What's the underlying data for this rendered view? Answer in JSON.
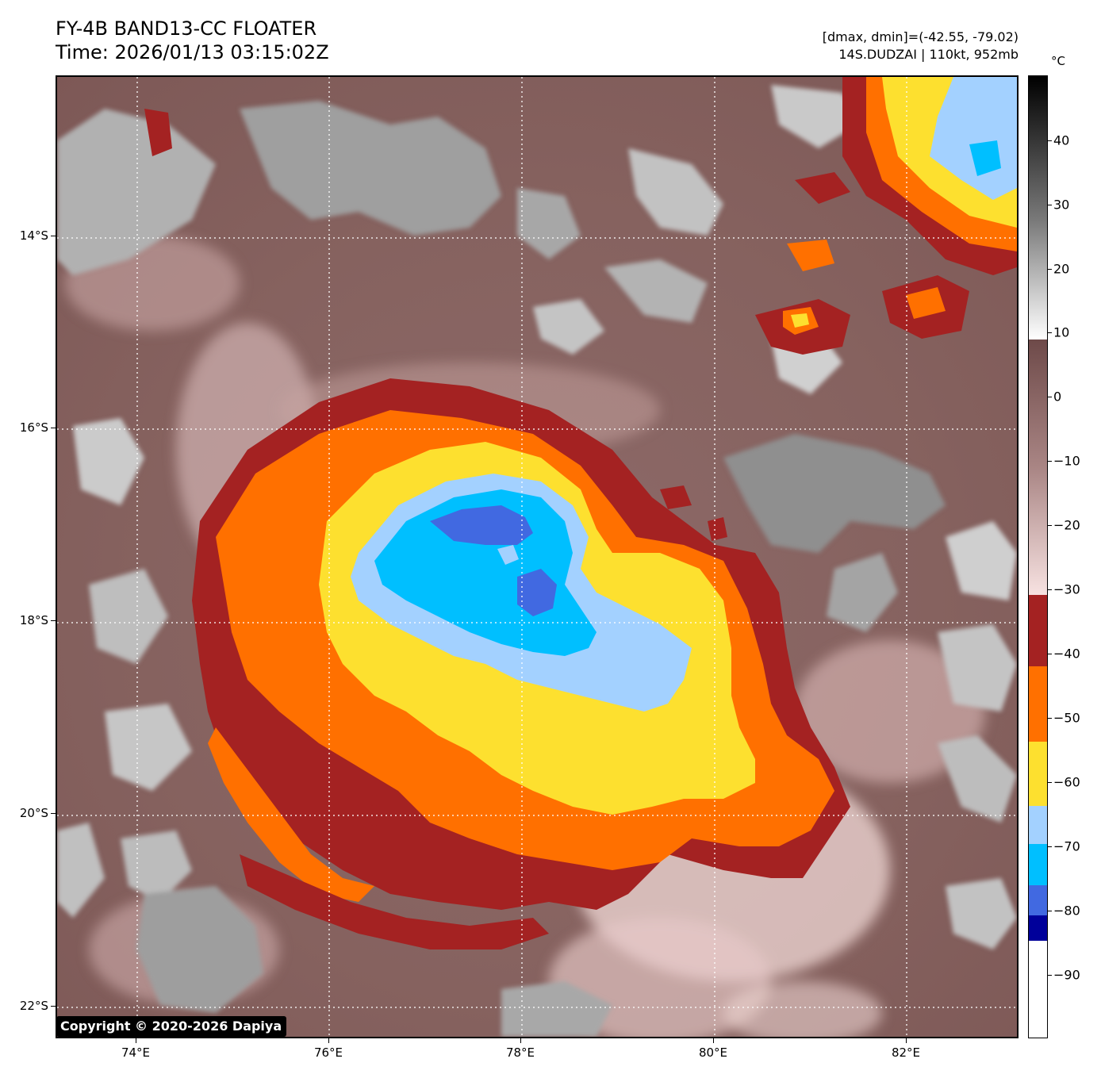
{
  "header": {
    "title": "FY-4B BAND13-CC FLOATER",
    "time": "Time: 2026/01/13 03:15:02Z",
    "range": "[dmax, dmin]=(-42.55, -79.02)",
    "storm": "14S.DUDZAI | 110kt, 952mb"
  },
  "map": {
    "lat_labels": [
      "14°S",
      "16°S",
      "18°S",
      "20°S",
      "22°S"
    ],
    "lon_labels": [
      "74°E",
      "76°E",
      "78°E",
      "80°E",
      "82°E"
    ],
    "gridlines": true,
    "storm_center": {
      "lon": 77.9,
      "lat": -17.7
    }
  },
  "copyright": "Copyright © 2020-2026 Dapiya",
  "colorbar": {
    "unit": "°C",
    "labels": [
      "40",
      "30",
      "20",
      "10",
      "0",
      "−10",
      "−20",
      "−30",
      "−40",
      "−50",
      "−60",
      "−70",
      "−80",
      "−90"
    ],
    "palette": {
      "warm_dark": "#7a5756",
      "cloud_gray": "#b8b8b8",
      "dark_red": "#a42222",
      "orange": "#ff7000",
      "yellow": "#fde02f",
      "light_blue": "#a3d1ff",
      "cyan": "#00bfff",
      "royal_blue": "#4169e1",
      "navy": "#00009a"
    }
  }
}
